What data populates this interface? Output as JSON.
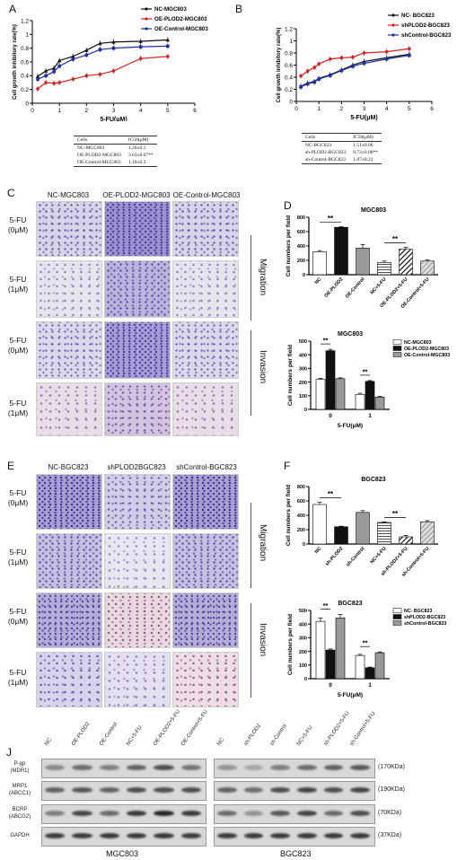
{
  "panels": {
    "A": {
      "label": "A",
      "table": {
        "header": [
          "Cells",
          "IC50(μM)"
        ],
        "rows": [
          [
            "NC-MGC803",
            "1.26±0.1"
          ],
          [
            "OE-PLOD2-MGC803",
            "3.63±0.07**"
          ],
          [
            "OE-Control-MGC803",
            "1.18±0.3"
          ]
        ]
      }
    },
    "B": {
      "label": "B",
      "table": {
        "header": [
          "Cells",
          "IC50(μM)"
        ],
        "rows": [
          [
            "NC-BGC823",
            "1.51±0.06"
          ],
          [
            "sh-PLOD2-BGC823",
            "0.72±0.08**"
          ],
          [
            "sh-Control-BGC823",
            "1.87±0.21"
          ]
        ]
      }
    },
    "C": {
      "label": "C",
      "columns": [
        "NC-MGC803",
        "OE-PLOD2-MGC803",
        "OE-Control-MGC803"
      ],
      "rows": [
        [
          "5-FU",
          "(0μM)"
        ],
        [
          "5-FU",
          "(1μM)"
        ],
        [
          "5-FU",
          "(0μM)"
        ],
        [
          "5-FU",
          "(1μM)"
        ]
      ],
      "side_labels": [
        "Migration",
        "Invasion"
      ]
    },
    "D": {
      "label": "D"
    },
    "E": {
      "label": "E",
      "columns": [
        "NC-BGC823",
        "shPLOD2BGC823",
        "shControl-BGC823"
      ],
      "rows": [
        [
          "5-FU",
          "(0μM)"
        ],
        [
          "5-FU",
          "(1μM)"
        ],
        [
          "5-FU",
          "(0μM)"
        ],
        [
          "5-FU",
          "(1μM)"
        ]
      ],
      "side_labels": [
        "Migration",
        "Invasion"
      ]
    },
    "F": {
      "label": "F"
    },
    "J": {
      "label": "J",
      "lanes_left": [
        "NC",
        "OE-PLOD2",
        "OE-Control",
        "NC+5-FU",
        "OE-PLOD2+5-FU",
        "OE-Control+5-FU"
      ],
      "lanes_right": [
        "NC",
        "sh-PLOD2",
        "sh-Control",
        "NC+5-FU",
        "sh-PLOD2+5-FU",
        "sh-Control+5-FU"
      ],
      "proteins": [
        {
          "name": "P-gp",
          "sub": "(MDR1)",
          "kda": "(170KDa)"
        },
        {
          "name": "MRP1",
          "sub": "(ABCC1)",
          "kda": "(190KDa)"
        },
        {
          "name": "BCRP",
          "sub": "(ABCG2)",
          "kda": "(70KDa)"
        },
        {
          "name": "GAPDH",
          "sub": "",
          "kda": "(37KDa)"
        }
      ],
      "footer_left": "MGC803",
      "footer_right": "BGC823"
    }
  },
  "chart_data": [
    {
      "id": "A",
      "type": "line",
      "xlabel": "5-FU(μM)",
      "ylabel": "Cell growth inhibitory rate(%)",
      "xlim": [
        0,
        6
      ],
      "ylim": [
        0,
        1.2
      ],
      "xticks": [
        0,
        1,
        2,
        3,
        4,
        5,
        6
      ],
      "yticks": [
        0,
        0.2,
        0.4,
        0.6,
        0.8,
        1.0,
        1.2
      ],
      "legend_position": "top-right",
      "series": [
        {
          "name": "NC-MGC803",
          "color": "#111111",
          "marker": "triangle",
          "x": [
            0.2,
            0.5,
            0.8,
            1.0,
            1.5,
            2.0,
            2.5,
            3.0,
            4.0,
            5.0
          ],
          "y": [
            0.39,
            0.47,
            0.51,
            0.62,
            0.68,
            0.77,
            0.87,
            0.89,
            0.9,
            0.92
          ]
        },
        {
          "name": "OE-PLOD2-MGC803",
          "color": "#d62020",
          "marker": "circle",
          "x": [
            0.2,
            0.5,
            0.8,
            1.0,
            1.5,
            2.0,
            2.5,
            3.0,
            4.0,
            5.0
          ],
          "y": [
            0.21,
            0.3,
            0.29,
            0.3,
            0.35,
            0.4,
            0.42,
            0.47,
            0.65,
            0.68
          ]
        },
        {
          "name": "OE-Control-MGC803",
          "color": "#1f2fa0",
          "marker": "square",
          "x": [
            0.2,
            0.5,
            0.8,
            1.0,
            1.5,
            2.0,
            2.5,
            3.0,
            4.0,
            5.0
          ],
          "y": [
            0.35,
            0.4,
            0.46,
            0.54,
            0.64,
            0.7,
            0.78,
            0.8,
            0.82,
            0.83
          ]
        }
      ]
    },
    {
      "id": "B",
      "type": "line",
      "xlabel": "5-FU(μM)",
      "ylabel": "Cell growth inhibitory rate(%)",
      "xlim": [
        0,
        6
      ],
      "ylim": [
        0,
        1.2
      ],
      "xticks": [
        0,
        1,
        2,
        3,
        4,
        5,
        6
      ],
      "yticks": [
        0,
        0.2,
        0.4,
        0.6,
        0.8,
        1.0,
        1.2
      ],
      "legend_position": "top-right",
      "series": [
        {
          "name": "NC- BGC823",
          "color": "#111111",
          "marker": "triangle",
          "x": [
            0.2,
            0.5,
            0.8,
            1.0,
            1.5,
            2.0,
            2.5,
            3.0,
            4.0,
            5.0
          ],
          "y": [
            0.25,
            0.3,
            0.33,
            0.38,
            0.44,
            0.52,
            0.6,
            0.66,
            0.72,
            0.78
          ]
        },
        {
          "name": "shPLOD2-BGC823",
          "color": "#d62020",
          "marker": "circle",
          "x": [
            0.2,
            0.5,
            0.8,
            1.0,
            1.5,
            2.0,
            2.5,
            3.0,
            4.0,
            5.0
          ],
          "y": [
            0.42,
            0.5,
            0.56,
            0.62,
            0.7,
            0.72,
            0.73,
            0.8,
            0.82,
            0.87
          ]
        },
        {
          "name": "shControl-BGC823",
          "color": "#1f2fa0",
          "marker": "square",
          "x": [
            0.2,
            0.5,
            0.8,
            1.0,
            1.5,
            2.0,
            2.5,
            3.0,
            4.0,
            5.0
          ],
          "y": [
            0.24,
            0.29,
            0.32,
            0.37,
            0.43,
            0.51,
            0.58,
            0.63,
            0.7,
            0.76
          ]
        }
      ]
    },
    {
      "id": "D1",
      "type": "bar",
      "title": "MGC803",
      "ylabel": "Cell numbers per field",
      "ylim": [
        0,
        800
      ],
      "yticks": [
        0,
        200,
        400,
        600,
        800
      ],
      "categories": [
        "NC",
        "OE-PLOD2",
        "OE-Control",
        "NC+5-FU",
        "OE-PLOD2+5-FU",
        "OE-Control+5-FU"
      ],
      "values": [
        320,
        660,
        370,
        170,
        355,
        190
      ],
      "errors": [
        15,
        8,
        50,
        20,
        25,
        15
      ],
      "fills": [
        "white",
        "black",
        "gray",
        "hatch-h",
        "hatch-black",
        "hatch-gray"
      ],
      "significance": [
        {
          "from": 0,
          "to": 1,
          "text": "**"
        },
        {
          "from": 3,
          "to": 4,
          "text": "**"
        }
      ]
    },
    {
      "id": "D2",
      "type": "bar",
      "title": "MGC803",
      "ylabel": "Cell numbers per field",
      "xlabel": "5-FU(μM)",
      "ylim": [
        0,
        500
      ],
      "yticks": [
        0,
        100,
        200,
        300,
        400,
        500
      ],
      "categories": [
        "0",
        "1"
      ],
      "legend_position": "top-right",
      "series": [
        {
          "name": "NC-MGC803",
          "fill": "white",
          "values": [
            220,
            110
          ],
          "errors": [
            8,
            8
          ]
        },
        {
          "name": "OE-PLOD2-MGC803",
          "fill": "black",
          "values": [
            430,
            205
          ],
          "errors": [
            10,
            6
          ]
        },
        {
          "name": "OE-Control-MGC803",
          "fill": "gray",
          "values": [
            225,
            90
          ],
          "errors": [
            6,
            5
          ]
        }
      ],
      "significance": [
        {
          "category": 0,
          "text": "**"
        },
        {
          "category": 1,
          "text": "**"
        }
      ]
    },
    {
      "id": "F1",
      "type": "bar",
      "title": "BGC823",
      "ylabel": "Cell numbers per field",
      "ylim": [
        0,
        800
      ],
      "yticks": [
        0,
        200,
        400,
        600,
        800
      ],
      "categories": [
        "NC",
        "sh-PLOD2",
        "sh-Control",
        "NC+5-FU",
        "sh-PLOD2+5-FU",
        "sh-Control+5-FU"
      ],
      "values": [
        550,
        240,
        440,
        300,
        100,
        310
      ],
      "errors": [
        30,
        8,
        25,
        8,
        20,
        15
      ],
      "fills": [
        "white",
        "black",
        "gray",
        "hatch-h",
        "hatch-black",
        "hatch-gray"
      ],
      "significance": [
        {
          "from": 0,
          "to": 1,
          "text": "**"
        },
        {
          "from": 3,
          "to": 4,
          "text": "**"
        }
      ]
    },
    {
      "id": "F2",
      "type": "bar",
      "title": "BGC823",
      "ylabel": "Cell numbers per field",
      "xlabel": "5-FU(μM)",
      "ylim": [
        0,
        500
      ],
      "yticks": [
        0,
        100,
        200,
        300,
        400,
        500
      ],
      "categories": [
        "0",
        "1"
      ],
      "legend_position": "top-right",
      "series": [
        {
          "name": "NC- BGC823",
          "fill": "white",
          "values": [
            420,
            170
          ],
          "errors": [
            25,
            8
          ]
        },
        {
          "name": "shPLOD2-BGC823",
          "fill": "black",
          "values": [
            210,
            80
          ],
          "errors": [
            8,
            5
          ]
        },
        {
          "name": "shControl-BGC823",
          "fill": "gray",
          "values": [
            445,
            190
          ],
          "errors": [
            25,
            6
          ]
        }
      ],
      "significance": [
        {
          "category": 0,
          "text": "**"
        },
        {
          "category": 1,
          "text": "**"
        }
      ]
    }
  ]
}
